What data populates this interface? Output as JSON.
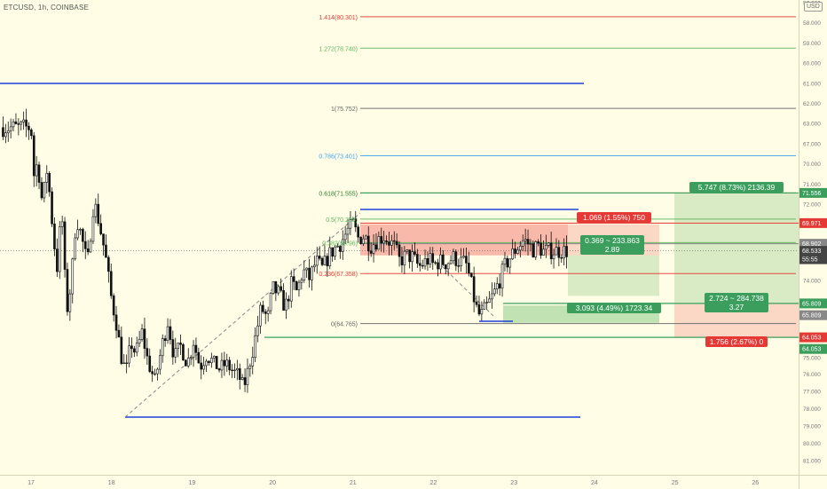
{
  "header": {
    "symbol_title": "ETCUSD, 1h, COINBASE",
    "currency": "USD"
  },
  "price_axis": {
    "ticks": [
      "81.000",
      "80.000",
      "79.000",
      "78.000",
      "77.000",
      "76.000",
      "75.000",
      "74.000",
      "73.000",
      "72.000",
      "71.000",
      "70.000",
      "67.000",
      "63.000",
      "62.000",
      "61.000",
      "60.000",
      "59.000",
      "58.000",
      "57.000"
    ],
    "tags": [
      {
        "label": "71.556",
        "color": "#3c9e5c"
      },
      {
        "label": "69.971",
        "color": "#e53935"
      },
      {
        "label": "68.902",
        "color": "#888888"
      },
      {
        "label": "68.533",
        "color": "#444444"
      },
      {
        "label": "55:55",
        "color": "#444444"
      },
      {
        "label": "65.809",
        "color": "#3c9e5c"
      },
      {
        "label": "65.809",
        "color": "#888888"
      },
      {
        "label": "64.053",
        "color": "#e53935"
      },
      {
        "label": "64.053",
        "color": "#3c9e5c"
      }
    ]
  },
  "time_axis": {
    "labels": [
      "17",
      "18",
      "19",
      "20",
      "21",
      "22",
      "23",
      "24",
      "25",
      "26"
    ]
  },
  "fibonacci": {
    "levels": [
      {
        "label": "1.414(80.301)",
        "color": "#e53935"
      },
      {
        "label": "1.272(78.740)",
        "color": "#5cb85c"
      },
      {
        "label": "1(75.752)",
        "color": "#666666"
      },
      {
        "label": "0.786(73.401)",
        "color": "#42a5f5"
      },
      {
        "label": "0.618(71.555)",
        "color": "#2e7d32"
      },
      {
        "label": "0.5(70.259)",
        "color": "#5cb85c"
      },
      {
        "label": "0.382(68.96)",
        "color": "#5cb85c"
      },
      {
        "label": "0.236(67.358)",
        "color": "#e53935"
      },
      {
        "label": "0(64.765)",
        "color": "#666666"
      }
    ]
  },
  "positions": {
    "short_target": "1.069 (1.55%) 750",
    "short_mid_line1": "0.369 ~ 233.863",
    "short_mid_line2": "2.89",
    "long_1_label": "3.093 (4.49%) 1723.34",
    "long_2_target": "5.747 (8.73%) 2136.39",
    "long_2_mid_line1": "2.724 ~ 284.738",
    "long_2_mid_line2": "3.27",
    "long_2_stop": "1.756 (2.67%) 0"
  },
  "colors": {
    "background": "#fffde6",
    "bull": "#ffffff",
    "bear": "#111111",
    "profit": "#3c9e5c",
    "loss": "#e53935",
    "trendline": "#1e40d8"
  },
  "chart_data": {
    "type": "candlestick",
    "symbol": "ETCUSD",
    "timeframe": "1h",
    "exchange": "COINBASE",
    "x_labels": [
      "17",
      "18",
      "19",
      "20",
      "21",
      "22",
      "23",
      "24",
      "25",
      "26"
    ],
    "ylim": [
      56.5,
      81.5
    ],
    "y_ticks": [
      57,
      58,
      59,
      60,
      61,
      62,
      63,
      67,
      70,
      71,
      72,
      73,
      74,
      75,
      76,
      77,
      78,
      79,
      80,
      81
    ],
    "fib_levels": [
      {
        "ratio": 1.414,
        "price": 80.301
      },
      {
        "ratio": 1.272,
        "price": 78.74
      },
      {
        "ratio": 1,
        "price": 75.752
      },
      {
        "ratio": 0.786,
        "price": 73.401
      },
      {
        "ratio": 0.618,
        "price": 71.555
      },
      {
        "ratio": 0.5,
        "price": 70.259
      },
      {
        "ratio": 0.382,
        "price": 68.96
      },
      {
        "ratio": 0.236,
        "price": 67.358
      },
      {
        "ratio": 0,
        "price": 64.765
      }
    ],
    "price_path": [
      [
        0,
        74.8
      ],
      [
        0.04,
        72.2
      ],
      [
        0.08,
        73.2
      ],
      [
        0.14,
        71.0
      ],
      [
        0.2,
        72.8
      ],
      [
        0.26,
        70.2
      ],
      [
        0.32,
        67.5
      ],
      [
        0.38,
        70.8
      ],
      [
        0.44,
        65.3
      ],
      [
        0.5,
        66.9
      ],
      [
        0.56,
        70.3
      ],
      [
        0.62,
        69.4
      ],
      [
        0.7,
        67.8
      ],
      [
        0.78,
        71.2
      ],
      [
        0.84,
        70.1
      ],
      [
        0.92,
        68.4
      ],
      [
        1.0,
        66.0
      ],
      [
        1.06,
        64.8
      ],
      [
        1.12,
        63.0
      ],
      [
        1.18,
        62.1
      ],
      [
        1.24,
        63.8
      ],
      [
        1.3,
        63.2
      ],
      [
        1.38,
        64.3
      ],
      [
        1.46,
        62.6
      ],
      [
        1.54,
        61.6
      ],
      [
        1.62,
        63.5
      ],
      [
        1.7,
        64.9
      ],
      [
        1.78,
        63.0
      ],
      [
        1.86,
        63.6
      ],
      [
        1.94,
        62.6
      ],
      [
        2.02,
        63.9
      ],
      [
        2.1,
        62.4
      ],
      [
        2.18,
        63.1
      ],
      [
        2.26,
        62.7
      ],
      [
        2.34,
        62.3
      ],
      [
        2.42,
        62.6
      ],
      [
        2.5,
        62.2
      ],
      [
        2.58,
        61.9
      ],
      [
        2.64,
        61.2
      ],
      [
        2.7,
        62.3
      ],
      [
        2.78,
        63.9
      ],
      [
        2.86,
        65.6
      ],
      [
        2.94,
        65.0
      ],
      [
        3.0,
        66.6
      ],
      [
        3.08,
        66.3
      ],
      [
        3.16,
        65.6
      ],
      [
        3.24,
        66.9
      ],
      [
        3.3,
        66.4
      ],
      [
        3.38,
        67.5
      ],
      [
        3.46,
        67.1
      ],
      [
        3.54,
        68.0
      ],
      [
        3.62,
        67.6
      ],
      [
        3.7,
        68.3
      ],
      [
        3.78,
        68.7
      ],
      [
        3.84,
        68.9
      ],
      [
        3.92,
        69.5
      ],
      [
        4.0,
        70.0
      ],
      [
        4.06,
        69.2
      ],
      [
        4.14,
        69.3
      ],
      [
        4.22,
        68.8
      ],
      [
        4.3,
        69.1
      ],
      [
        4.38,
        69.3
      ],
      [
        4.46,
        69.0
      ],
      [
        4.52,
        68.7
      ],
      [
        4.58,
        68.0
      ],
      [
        4.66,
        68.3
      ],
      [
        4.74,
        68.2
      ],
      [
        4.82,
        67.7
      ],
      [
        4.88,
        67.9
      ],
      [
        4.94,
        68.1
      ],
      [
        5.0,
        67.8
      ],
      [
        5.08,
        68.0
      ],
      [
        5.16,
        67.9
      ],
      [
        5.24,
        68.2
      ],
      [
        5.32,
        68.0
      ],
      [
        5.4,
        67.9
      ],
      [
        5.46,
        67.0
      ],
      [
        5.52,
        65.7
      ],
      [
        5.58,
        65.1
      ],
      [
        5.64,
        65.5
      ],
      [
        5.7,
        65.9
      ],
      [
        5.76,
        66.4
      ],
      [
        5.82,
        67.0
      ],
      [
        5.88,
        67.7
      ],
      [
        5.94,
        68.1
      ],
      [
        6.0,
        68.5
      ],
      [
        6.06,
        68.8
      ],
      [
        6.12,
        69.1
      ],
      [
        6.18,
        68.9
      ],
      [
        6.24,
        68.6
      ],
      [
        6.3,
        68.8
      ],
      [
        6.36,
        68.5
      ],
      [
        6.4,
        68.53
      ]
    ]
  }
}
